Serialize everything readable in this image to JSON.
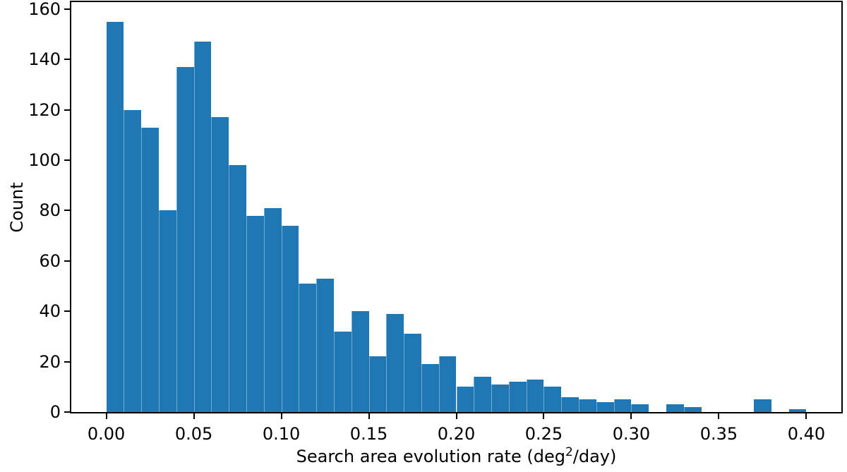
{
  "figure": {
    "background_color": "#ffffff",
    "spine_color": "#000000"
  },
  "chart_data": {
    "type": "bar",
    "subtype": "histogram",
    "title": "",
    "xlabel": "Search area evolution rate (deg2/day)",
    "xlabel_parts": {
      "prefix": "Search area evolution rate (deg",
      "sup": "2",
      "suffix": "/day)"
    },
    "ylabel": "Count",
    "bin_width": 0.01,
    "bin_start": 0.0,
    "counts": [
      155,
      120,
      113,
      80,
      137,
      147,
      117,
      98,
      78,
      81,
      74,
      51,
      53,
      32,
      40,
      22,
      39,
      31,
      19,
      22,
      10,
      14,
      11,
      12,
      13,
      10,
      6,
      5,
      4,
      5,
      3,
      0,
      3,
      2,
      0,
      0,
      0,
      5,
      0,
      1
    ],
    "xlim": [
      -0.02,
      0.42
    ],
    "ylim": [
      0,
      162.75
    ],
    "x_ticks": [
      {
        "value": 0.0,
        "label": "0.00"
      },
      {
        "value": 0.05,
        "label": "0.05"
      },
      {
        "value": 0.1,
        "label": "0.10"
      },
      {
        "value": 0.15,
        "label": "0.15"
      },
      {
        "value": 0.2,
        "label": "0.20"
      },
      {
        "value": 0.25,
        "label": "0.25"
      },
      {
        "value": 0.3,
        "label": "0.30"
      },
      {
        "value": 0.35,
        "label": "0.35"
      },
      {
        "value": 0.4,
        "label": "0.40"
      }
    ],
    "y_ticks": [
      {
        "value": 0,
        "label": "0"
      },
      {
        "value": 20,
        "label": "20"
      },
      {
        "value": 40,
        "label": "40"
      },
      {
        "value": 60,
        "label": "60"
      },
      {
        "value": 80,
        "label": "80"
      },
      {
        "value": 100,
        "label": "100"
      },
      {
        "value": 120,
        "label": "120"
      },
      {
        "value": 140,
        "label": "140"
      },
      {
        "value": 160,
        "label": "160"
      }
    ],
    "bar_color": "#1f77b4",
    "bar_separator_color": "rgba(255,255,255,0.38)",
    "grid": "off",
    "legend": "none"
  }
}
